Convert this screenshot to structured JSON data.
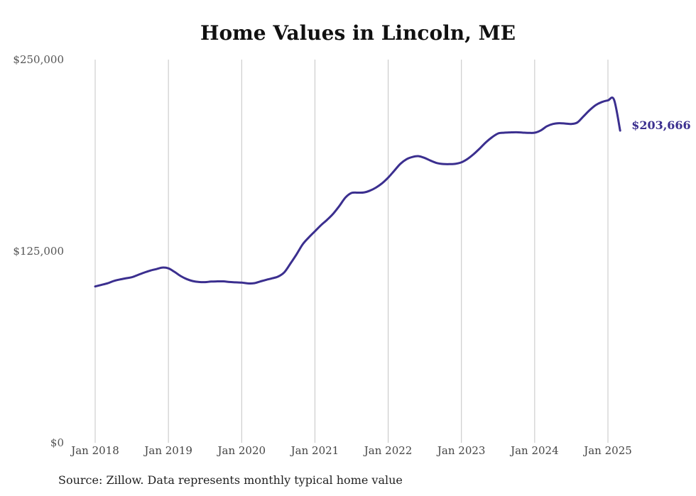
{
  "title": "Home Values in Lincoln, ME",
  "source": "Source: Zillow. Data represents monthly typical home value",
  "colors": {
    "line": "#3b2f8f",
    "grid": "#c4c4c4",
    "end_label": "#3b2f8f"
  },
  "chart_data": {
    "type": "line",
    "title": "Home Values in Lincoln, ME",
    "xlabel": "",
    "ylabel": "",
    "ylim": [
      0,
      250000
    ],
    "xlim": [
      "2018-01",
      "2025-03"
    ],
    "y_ticks": [
      {
        "value": 0,
        "label": "$0"
      },
      {
        "value": 125000,
        "label": "$125,000"
      },
      {
        "value": 250000,
        "label": "$250,000"
      }
    ],
    "x_ticks": [
      {
        "date": "2018-01",
        "label": "Jan 2018"
      },
      {
        "date": "2019-01",
        "label": "Jan 2019"
      },
      {
        "date": "2020-01",
        "label": "Jan 2020"
      },
      {
        "date": "2021-01",
        "label": "Jan 2021"
      },
      {
        "date": "2022-01",
        "label": "Jan 2022"
      },
      {
        "date": "2023-01",
        "label": "Jan 2023"
      },
      {
        "date": "2024-01",
        "label": "Jan 2024"
      },
      {
        "date": "2025-01",
        "label": "Jan 2025"
      }
    ],
    "grid": "vertical",
    "end_label": "$203,666",
    "series": [
      {
        "x": [
          "2018-01",
          "2018-02",
          "2018-03",
          "2018-04",
          "2018-05",
          "2018-06",
          "2018-07",
          "2018-08",
          "2018-09",
          "2018-10",
          "2018-11",
          "2018-12",
          "2019-01",
          "2019-02",
          "2019-03",
          "2019-04",
          "2019-05",
          "2019-06",
          "2019-07",
          "2019-08",
          "2019-09",
          "2019-10",
          "2019-11",
          "2019-12",
          "2020-01",
          "2020-02",
          "2020-03",
          "2020-04",
          "2020-05",
          "2020-06",
          "2020-07",
          "2020-08",
          "2020-09",
          "2020-10",
          "2020-11",
          "2020-12",
          "2021-01",
          "2021-02",
          "2021-03",
          "2021-04",
          "2021-05",
          "2021-06",
          "2021-07",
          "2021-08",
          "2021-09",
          "2021-10",
          "2021-11",
          "2021-12",
          "2022-01",
          "2022-02",
          "2022-03",
          "2022-04",
          "2022-05",
          "2022-06",
          "2022-07",
          "2022-08",
          "2022-09",
          "2022-10",
          "2022-11",
          "2022-12",
          "2023-01",
          "2023-02",
          "2023-03",
          "2023-04",
          "2023-05",
          "2023-06",
          "2023-07",
          "2023-08",
          "2023-09",
          "2023-10",
          "2023-11",
          "2023-12",
          "2024-01",
          "2024-02",
          "2024-03",
          "2024-04",
          "2024-05",
          "2024-06",
          "2024-07",
          "2024-08",
          "2024-09",
          "2024-10",
          "2024-11",
          "2024-12",
          "2025-01",
          "2025-02",
          "2025-03"
        ],
        "values": [
          102000,
          103000,
          104000,
          105500,
          106500,
          107300,
          108000,
          109500,
          111000,
          112300,
          113300,
          114300,
          113800,
          111500,
          108800,
          106800,
          105500,
          104900,
          104800,
          105200,
          105300,
          105300,
          104900,
          104700,
          104500,
          104000,
          104100,
          105200,
          106300,
          107300,
          108500,
          111300,
          117000,
          123000,
          129500,
          134000,
          138000,
          142000,
          145500,
          149500,
          154500,
          160000,
          163000,
          163200,
          163300,
          164500,
          166500,
          169300,
          173000,
          177500,
          182000,
          185000,
          186500,
          187000,
          185800,
          184000,
          182500,
          181900,
          181800,
          182000,
          183000,
          185200,
          188300,
          192000,
          196000,
          199300,
          201800,
          202300,
          202500,
          202600,
          202400,
          202200,
          202300,
          203800,
          206500,
          208000,
          208500,
          208300,
          208000,
          209000,
          213000,
          217000,
          220300,
          222300,
          223400,
          223800,
          203666
        ]
      }
    ]
  }
}
